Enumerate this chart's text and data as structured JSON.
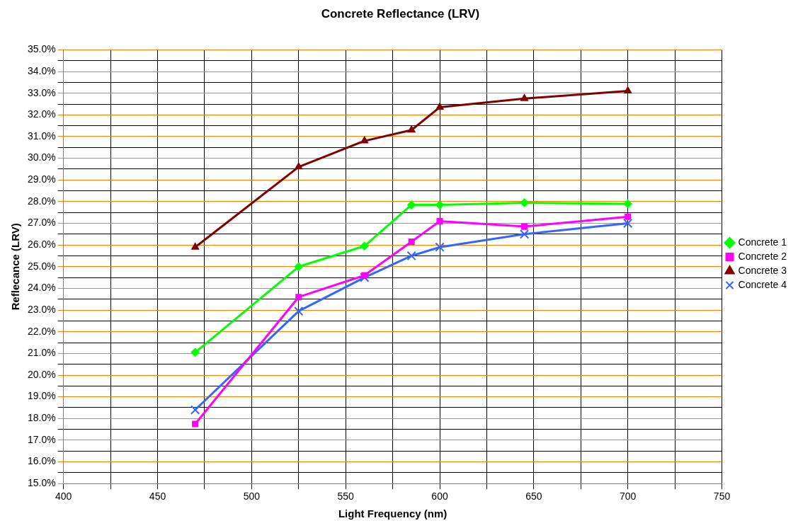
{
  "chart_data": {
    "type": "line",
    "title": "Concrete Reflectance (LRV)",
    "xlabel": "Light Frequency (nm)",
    "ylabel": "Reflecance (LRV)",
    "x": [
      470,
      525,
      560,
      585,
      600,
      645,
      700
    ],
    "series": [
      {
        "name": "Concrete 1",
        "color": "#00ff00",
        "marker": "diamond",
        "values": [
          21.05,
          25.0,
          25.95,
          27.85,
          27.85,
          27.95,
          27.9
        ]
      },
      {
        "name": "Concrete 2",
        "color": "#ff00ff",
        "marker": "square",
        "values": [
          17.75,
          23.6,
          24.6,
          26.15,
          27.1,
          26.85,
          27.3
        ]
      },
      {
        "name": "Concrete 3",
        "color": "#800000",
        "marker": "triangle",
        "values": [
          25.9,
          29.6,
          30.8,
          31.3,
          32.35,
          32.75,
          33.1
        ]
      },
      {
        "name": "Concrete 4",
        "color": "#3366ff",
        "marker": "cross",
        "values": [
          18.4,
          22.95,
          24.5,
          25.5,
          25.9,
          26.5,
          27.0
        ]
      }
    ],
    "xlim": [
      400,
      750
    ],
    "xticks": [
      400,
      {
        "value": 425,
        "label": null
      },
      450,
      {
        "value": 475,
        "label": null
      },
      500,
      {
        "value": 525,
        "label": null
      },
      550,
      {
        "value": 575,
        "label": null
      },
      600,
      {
        "value": 625,
        "label": null
      },
      650,
      {
        "value": 675,
        "label": null
      },
      700,
      {
        "value": 725,
        "label": null
      },
      750
    ],
    "ylim": [
      15,
      35
    ],
    "yticks": [
      {
        "value": 15,
        "label": "15.0%"
      },
      {
        "value": 15.5,
        "label": null
      },
      {
        "value": 16,
        "label": "16.0%"
      },
      {
        "value": 16.5,
        "label": null
      },
      {
        "value": 17,
        "label": "17.0%"
      },
      {
        "value": 17.5,
        "label": null
      },
      {
        "value": 18,
        "label": "18.0%"
      },
      {
        "value": 18.5,
        "label": null
      },
      {
        "value": 19,
        "label": "19.0%"
      },
      {
        "value": 19.5,
        "label": null
      },
      {
        "value": 20,
        "label": "20.0%"
      },
      {
        "value": 20.5,
        "label": null
      },
      {
        "value": 21,
        "label": "21.0%"
      },
      {
        "value": 21.5,
        "label": null
      },
      {
        "value": 22,
        "label": "22.0%"
      },
      {
        "value": 22.5,
        "label": null
      },
      {
        "value": 23,
        "label": "23.0%"
      },
      {
        "value": 23.5,
        "label": null
      },
      {
        "value": 24,
        "label": "24.0%"
      },
      {
        "value": 24.5,
        "label": null
      },
      {
        "value": 25,
        "label": "25.0%"
      },
      {
        "value": 25.5,
        "label": null
      },
      {
        "value": 26,
        "label": "26.0%"
      },
      {
        "value": 26.5,
        "label": null
      },
      {
        "value": 27,
        "label": "27.0%"
      },
      {
        "value": 27.5,
        "label": null
      },
      {
        "value": 28,
        "label": "28.0%"
      },
      {
        "value": 28.5,
        "label": null
      },
      {
        "value": 29,
        "label": "29.0%"
      },
      {
        "value": 29.5,
        "label": null
      },
      {
        "value": 30,
        "label": "30.0%"
      },
      {
        "value": 30.5,
        "label": null
      },
      {
        "value": 31,
        "label": "31.0%"
      },
      {
        "value": 31.5,
        "label": null
      },
      {
        "value": 32,
        "label": "32.0%"
      },
      {
        "value": 32.5,
        "label": null
      },
      {
        "value": 33,
        "label": "33.0%"
      },
      {
        "value": 33.5,
        "label": null
      },
      {
        "value": 34,
        "label": "34.0%"
      },
      {
        "value": 34.5,
        "label": null
      },
      {
        "value": 35,
        "label": "35.0%"
      }
    ],
    "grid": true,
    "legend": "right",
    "line_style": "solid"
  }
}
